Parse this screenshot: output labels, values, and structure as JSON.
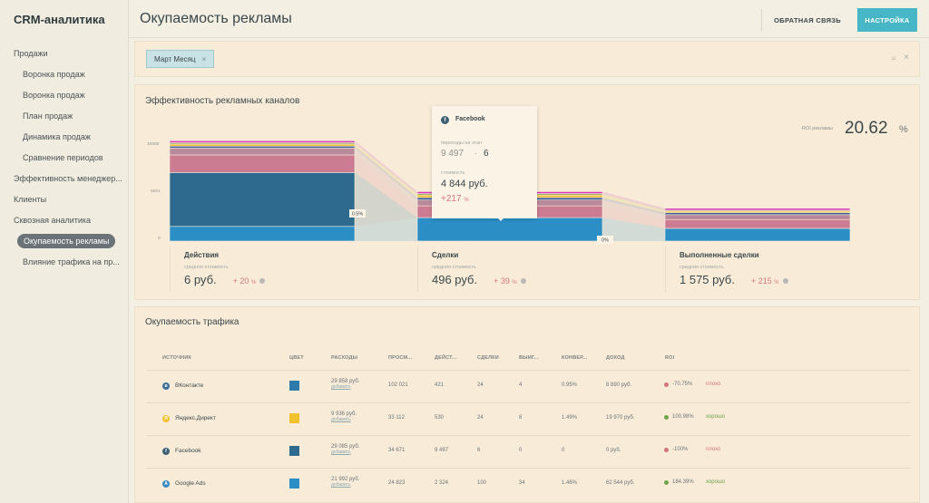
{
  "app": {
    "brand": "CRM-аналитика"
  },
  "sidebar": {
    "items": [
      {
        "label": "Продажи",
        "level": 0,
        "active": false
      },
      {
        "label": "Воронка продаж",
        "level": 1,
        "active": false
      },
      {
        "label": "Воронка продаж",
        "level": 1,
        "active": false
      },
      {
        "label": "План продаж",
        "level": 1,
        "active": false
      },
      {
        "label": "Динамика продаж",
        "level": 1,
        "active": false
      },
      {
        "label": "Сравнение периодов",
        "level": 1,
        "active": false
      },
      {
        "label": "Эффективность менеджер...",
        "level": 0,
        "active": false
      },
      {
        "label": "Клиенты",
        "level": 0,
        "active": false
      },
      {
        "label": "Сквозная аналитика",
        "level": 0,
        "active": false
      },
      {
        "label": "Окупаемость рекламы",
        "level": 1,
        "active": true
      },
      {
        "label": "Влияние трафика на пр...",
        "level": 1,
        "active": false
      }
    ]
  },
  "header": {
    "title": "Окупаемость рекламы",
    "feedback_label": "ОБРАТНАЯ СВЯЗЬ",
    "settings_label": "НАСТРОЙКА",
    "accent": "#47b6c7"
  },
  "filter": {
    "chip_label": "Март Месяц",
    "chip_remove": "×",
    "search_icon": "⌕",
    "clear_icon": "×"
  },
  "chart_card": {
    "title": "Эффективность рекламных каналов",
    "roi_label": "ROI рекламы",
    "roi_value": "20.62",
    "roi_unit": "%",
    "y_ticks": [
      "10000",
      "5001",
      "0"
    ],
    "connector_labels": [
      "0.5%",
      "0%"
    ],
    "tooltip": {
      "title": "Facebook",
      "sub1": "переходы на этап",
      "value1a": "9 497",
      "dot": "·",
      "value1b": "6",
      "sub2": "стоимость",
      "value2": "4 844 руб.",
      "delta": "+217",
      "delta_unit": "%"
    },
    "stats": [
      {
        "title": "Действия",
        "sub": "средняя стоимость",
        "value": "6 руб.",
        "delta": "+ 20",
        "unit": "%"
      },
      {
        "title": "Сделки",
        "sub": "средняя стоимость",
        "value": "496 руб.",
        "delta": "+ 39",
        "unit": "%"
      },
      {
        "title": "Выполненные сделки",
        "sub": "средняя стоимость",
        "value": "1 575 руб.",
        "delta": "+ 215",
        "unit": "%"
      }
    ]
  },
  "chart_data": {
    "type": "bar",
    "stacked": true,
    "categories": [
      "Действия",
      "Сделки",
      "Выполненные сделки"
    ],
    "ylim": [
      0,
      10000
    ],
    "series": [
      {
        "color": "#2b8fc6",
        "values": [
          1500,
          2400,
          1300
        ]
      },
      {
        "color": "#2e6a8e",
        "values": [
          5500,
          0,
          0
        ]
      },
      {
        "color": "#cc7c92",
        "values": [
          1800,
          1200,
          900
        ]
      },
      {
        "color": "#b88a9c",
        "values": [
          700,
          600,
          500
        ]
      },
      {
        "color": "#3f5e9c",
        "values": [
          200,
          250,
          200
        ]
      },
      {
        "color": "#f2c12e",
        "values": [
          200,
          250,
          150
        ]
      },
      {
        "color": "#9ab16b",
        "values": [
          150,
          150,
          100
        ]
      },
      {
        "color": "#d63bb8",
        "values": [
          200,
          200,
          200
        ]
      }
    ]
  },
  "table": {
    "title": "Окупаемость трафика",
    "headers": [
      "ИСТОЧНИК",
      "ЦВЕТ",
      "РАСХОДЫ",
      "ПРОСМ...",
      "ДЕЙСТ...",
      "СДЕЛКИ",
      "ВЫИГ...",
      "КОНВЕР...",
      "ДОХОД",
      "ROI"
    ],
    "rows": [
      {
        "source": "ВКонтакте",
        "icon": "vk-icon",
        "icon_color": "#3e6f96",
        "icon_glyph": "в",
        "color": "#2e7bab",
        "spend": "29 858 руб.",
        "spend_link": "добавить",
        "views": "102 021",
        "actions": "421",
        "deals": "24",
        "won": "4",
        "conv": "0.95%",
        "revenue": "8 890 руб.",
        "roi": "-70.75%",
        "roi_status": "плохо",
        "status_color": "#d4757a",
        "dot_color": "#d4757a"
      },
      {
        "source": "Яндекс.Директ",
        "icon": "yandex-icon",
        "icon_color": "#f2c12e",
        "icon_glyph": "Я",
        "color": "#f2c12e",
        "spend": "9 936 руб.",
        "spend_link": "добавить",
        "views": "33 112",
        "actions": "530",
        "deals": "24",
        "won": "8",
        "conv": "1.49%",
        "revenue": "19 970 руб.",
        "roi": "100.98%",
        "roi_status": "хорошо",
        "status_color": "#6fa44a",
        "dot_color": "#6fa44a"
      },
      {
        "source": "Facebook",
        "icon": "facebook-icon",
        "icon_color": "#3e6075",
        "icon_glyph": "f",
        "color": "#2e6a8e",
        "spend": "29 085 руб.",
        "spend_link": "добавить",
        "views": "34 671",
        "actions": "9 497",
        "deals": "6",
        "won": "0",
        "conv": "0",
        "revenue": "0 руб.",
        "roi": "-100%",
        "roi_status": "плохо",
        "status_color": "#d4757a",
        "dot_color": "#d4757a"
      },
      {
        "source": "Google Ads",
        "icon": "google-ads-icon",
        "icon_color": "#3a8ac2",
        "icon_glyph": "A",
        "color": "#2b8fc6",
        "spend": "21 992 руб.",
        "spend_link": "добавить",
        "views": "24 823",
        "actions": "2 324",
        "deals": "100",
        "won": "34",
        "conv": "1.46%",
        "revenue": "62 544 руб.",
        "roi": "184.39%",
        "roi_status": "хорошо",
        "status_color": "#6fa44a",
        "dot_color": "#6fa44a"
      }
    ]
  }
}
